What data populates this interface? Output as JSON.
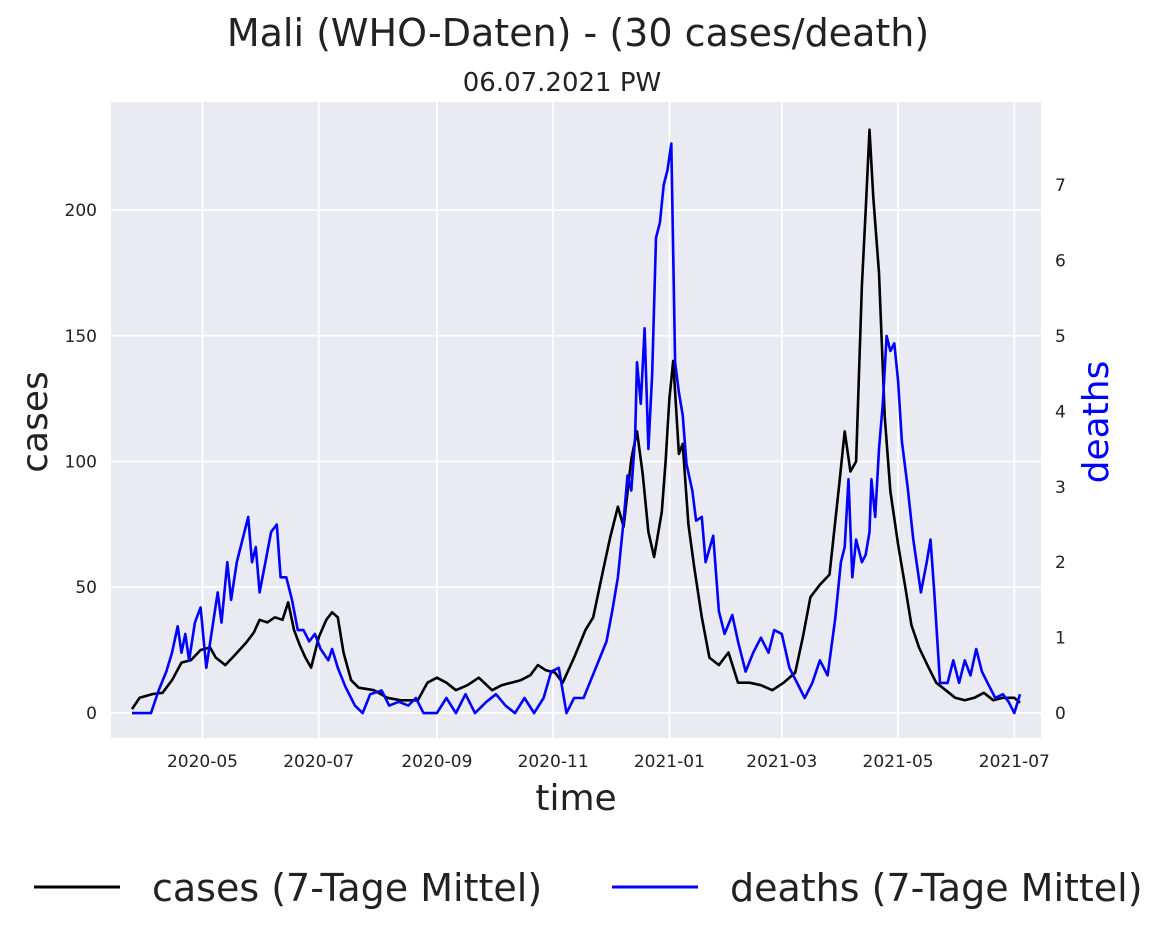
{
  "chart_data": {
    "type": "line",
    "title": "Mali (WHO-Daten) - (30 cases/death)",
    "subtitle": "06.07.2021 PW",
    "xlabel": "time",
    "ylabel_left": "cases",
    "ylabel_right": "deaths",
    "x_range": [
      "2020-03-14",
      "2021-07-15"
    ],
    "x_ticks": [
      "2020-05",
      "2020-07",
      "2020-09",
      "2020-11",
      "2021-01",
      "2021-03",
      "2021-05",
      "2021-07"
    ],
    "y_left_range": [
      -10,
      243
    ],
    "y_left_ticks": [
      0,
      50,
      100,
      150,
      200
    ],
    "y_right_range": [
      -0.33,
      8.1
    ],
    "y_right_ticks": [
      0,
      1,
      2,
      3,
      4,
      5,
      6,
      7
    ],
    "grid": true,
    "legend_position": "bottom",
    "colors": {
      "background": "#eaeaf2",
      "grid": "#ffffff",
      "cases": "#000000",
      "deaths": "#0000ff",
      "deaths_label": "#0000ff"
    },
    "series": [
      {
        "name": "cases (7-Tage Mittel)",
        "axis": "left",
        "color": "#000000",
        "points": [
          [
            "2020-03-25",
            1.5
          ],
          [
            "2020-03-29",
            6
          ],
          [
            "2020-04-05",
            7.5
          ],
          [
            "2020-04-10",
            8
          ],
          [
            "2020-04-15",
            13
          ],
          [
            "2020-04-20",
            20
          ],
          [
            "2020-04-25",
            21
          ],
          [
            "2020-04-30",
            25
          ],
          [
            "2020-05-05",
            26
          ],
          [
            "2020-05-08",
            22
          ],
          [
            "2020-05-13",
            19
          ],
          [
            "2020-05-18",
            23
          ],
          [
            "2020-05-24",
            28
          ],
          [
            "2020-05-28",
            32
          ],
          [
            "2020-05-31",
            37
          ],
          [
            "2020-06-04",
            36
          ],
          [
            "2020-06-08",
            38
          ],
          [
            "2020-06-12",
            37
          ],
          [
            "2020-06-15",
            44
          ],
          [
            "2020-06-18",
            33
          ],
          [
            "2020-06-21",
            27
          ],
          [
            "2020-06-24",
            22
          ],
          [
            "2020-06-27",
            18
          ],
          [
            "2020-07-01",
            30
          ],
          [
            "2020-07-05",
            37
          ],
          [
            "2020-07-08",
            40
          ],
          [
            "2020-07-11",
            38
          ],
          [
            "2020-07-14",
            24
          ],
          [
            "2020-07-18",
            13
          ],
          [
            "2020-07-22",
            10
          ],
          [
            "2020-07-30",
            9
          ],
          [
            "2020-08-06",
            6
          ],
          [
            "2020-08-13",
            5
          ],
          [
            "2020-08-22",
            5
          ],
          [
            "2020-08-27",
            12
          ],
          [
            "2020-09-01",
            14
          ],
          [
            "2020-09-06",
            12
          ],
          [
            "2020-09-11",
            9
          ],
          [
            "2020-09-17",
            11
          ],
          [
            "2020-09-23",
            14
          ],
          [
            "2020-09-30",
            9
          ],
          [
            "2020-10-05",
            11
          ],
          [
            "2020-10-10",
            12
          ],
          [
            "2020-10-15",
            13
          ],
          [
            "2020-10-20",
            15
          ],
          [
            "2020-10-24",
            19
          ],
          [
            "2020-10-28",
            17
          ],
          [
            "2020-11-02",
            16
          ],
          [
            "2020-11-06",
            12
          ],
          [
            "2020-11-12",
            22
          ],
          [
            "2020-11-18",
            33
          ],
          [
            "2020-11-22",
            38
          ],
          [
            "2020-11-27",
            56
          ],
          [
            "2020-12-01",
            70
          ],
          [
            "2020-12-05",
            82
          ],
          [
            "2020-12-08",
            74
          ],
          [
            "2020-12-12",
            101
          ],
          [
            "2020-12-15",
            112
          ],
          [
            "2020-12-18",
            95
          ],
          [
            "2020-12-21",
            72
          ],
          [
            "2020-12-24",
            62
          ],
          [
            "2020-12-28",
            80
          ],
          [
            "2020-12-30",
            100
          ],
          [
            "2021-01-01",
            125
          ],
          [
            "2021-01-03",
            140
          ],
          [
            "2021-01-06",
            103
          ],
          [
            "2021-01-08",
            107
          ],
          [
            "2021-01-11",
            75
          ],
          [
            "2021-01-14",
            58
          ],
          [
            "2021-01-18",
            38
          ],
          [
            "2021-01-22",
            22
          ],
          [
            "2021-01-27",
            19
          ],
          [
            "2021-02-01",
            24
          ],
          [
            "2021-02-06",
            12
          ],
          [
            "2021-02-12",
            12
          ],
          [
            "2021-02-18",
            11
          ],
          [
            "2021-02-24",
            9
          ],
          [
            "2021-03-02",
            12
          ],
          [
            "2021-03-08",
            16
          ],
          [
            "2021-03-12",
            30
          ],
          [
            "2021-03-16",
            46
          ],
          [
            "2021-03-21",
            51
          ],
          [
            "2021-03-26",
            55
          ],
          [
            "2021-03-31",
            90
          ],
          [
            "2021-04-03",
            112
          ],
          [
            "2021-04-06",
            96
          ],
          [
            "2021-04-09",
            100
          ],
          [
            "2021-04-12",
            170
          ],
          [
            "2021-04-14",
            200
          ],
          [
            "2021-04-16",
            232
          ],
          [
            "2021-04-18",
            205
          ],
          [
            "2021-04-21",
            175
          ],
          [
            "2021-04-24",
            118
          ],
          [
            "2021-04-27",
            88
          ],
          [
            "2021-05-01",
            67
          ],
          [
            "2021-05-05",
            49
          ],
          [
            "2021-05-08",
            35
          ],
          [
            "2021-05-12",
            26
          ],
          [
            "2021-05-17",
            18
          ],
          [
            "2021-05-21",
            12
          ],
          [
            "2021-05-26",
            9
          ],
          [
            "2021-05-31",
            6
          ],
          [
            "2021-06-05",
            5
          ],
          [
            "2021-06-10",
            6
          ],
          [
            "2021-06-15",
            8
          ],
          [
            "2021-06-20",
            5
          ],
          [
            "2021-06-25",
            6
          ],
          [
            "2021-07-01",
            6
          ],
          [
            "2021-07-04",
            4
          ]
        ]
      },
      {
        "name": "deaths (7-Tage Mittel)",
        "axis": "right",
        "color": "#0000ff",
        "points": [
          [
            "2020-03-25",
            0
          ],
          [
            "2020-04-04",
            0
          ],
          [
            "2020-04-08",
            0.3
          ],
          [
            "2020-04-12",
            0.55
          ],
          [
            "2020-04-15",
            0.8
          ],
          [
            "2020-04-18",
            1.15
          ],
          [
            "2020-04-20",
            0.8
          ],
          [
            "2020-04-22",
            1.05
          ],
          [
            "2020-04-24",
            0.7
          ],
          [
            "2020-04-27",
            1.2
          ],
          [
            "2020-04-30",
            1.4
          ],
          [
            "2020-05-03",
            0.6
          ],
          [
            "2020-05-06",
            1.1
          ],
          [
            "2020-05-09",
            1.6
          ],
          [
            "2020-05-11",
            1.2
          ],
          [
            "2020-05-14",
            2.0
          ],
          [
            "2020-05-16",
            1.5
          ],
          [
            "2020-05-19",
            2.0
          ],
          [
            "2020-05-22",
            2.3
          ],
          [
            "2020-05-25",
            2.6
          ],
          [
            "2020-05-27",
            2.0
          ],
          [
            "2020-05-29",
            2.2
          ],
          [
            "2020-05-31",
            1.6
          ],
          [
            "2020-06-03",
            2.0
          ],
          [
            "2020-06-06",
            2.4
          ],
          [
            "2020-06-09",
            2.5
          ],
          [
            "2020-06-11",
            1.8
          ],
          [
            "2020-06-14",
            1.8
          ],
          [
            "2020-06-17",
            1.5
          ],
          [
            "2020-06-20",
            1.1
          ],
          [
            "2020-06-23",
            1.1
          ],
          [
            "2020-06-26",
            0.95
          ],
          [
            "2020-06-29",
            1.05
          ],
          [
            "2020-07-02",
            0.85
          ],
          [
            "2020-07-06",
            0.7
          ],
          [
            "2020-07-08",
            0.85
          ],
          [
            "2020-07-11",
            0.6
          ],
          [
            "2020-07-15",
            0.35
          ],
          [
            "2020-07-20",
            0.1
          ],
          [
            "2020-07-24",
            0
          ],
          [
            "2020-07-28",
            0.25
          ],
          [
            "2020-08-03",
            0.3
          ],
          [
            "2020-08-07",
            0.1
          ],
          [
            "2020-08-12",
            0.15
          ],
          [
            "2020-08-17",
            0.1
          ],
          [
            "2020-08-21",
            0.2
          ],
          [
            "2020-08-25",
            0
          ],
          [
            "2020-09-01",
            0
          ],
          [
            "2020-09-06",
            0.2
          ],
          [
            "2020-09-11",
            0
          ],
          [
            "2020-09-16",
            0.25
          ],
          [
            "2020-09-21",
            0
          ],
          [
            "2020-09-27",
            0.15
          ],
          [
            "2020-10-02",
            0.25
          ],
          [
            "2020-10-07",
            0.1
          ],
          [
            "2020-10-12",
            0
          ],
          [
            "2020-10-17",
            0.2
          ],
          [
            "2020-10-22",
            0
          ],
          [
            "2020-10-27",
            0.2
          ],
          [
            "2020-10-31",
            0.55
          ],
          [
            "2020-11-04",
            0.6
          ],
          [
            "2020-11-08",
            0
          ],
          [
            "2020-11-12",
            0.2
          ],
          [
            "2020-11-17",
            0.2
          ],
          [
            "2020-11-21",
            0.45
          ],
          [
            "2020-11-25",
            0.7
          ],
          [
            "2020-11-29",
            0.95
          ],
          [
            "2020-12-02",
            1.35
          ],
          [
            "2020-12-05",
            1.8
          ],
          [
            "2020-12-08",
            2.55
          ],
          [
            "2020-12-10",
            3.15
          ],
          [
            "2020-12-12",
            2.95
          ],
          [
            "2020-12-14",
            3.65
          ],
          [
            "2020-12-15",
            4.65
          ],
          [
            "2020-12-17",
            4.1
          ],
          [
            "2020-12-19",
            5.1
          ],
          [
            "2020-12-21",
            3.5
          ],
          [
            "2020-12-23",
            4.5
          ],
          [
            "2020-12-25",
            6.3
          ],
          [
            "2020-12-27",
            6.5
          ],
          [
            "2020-12-29",
            7.0
          ],
          [
            "2020-12-31",
            7.2
          ],
          [
            "2021-01-02",
            7.55
          ],
          [
            "2021-01-04",
            4.65
          ],
          [
            "2021-01-06",
            4.25
          ],
          [
            "2021-01-08",
            3.95
          ],
          [
            "2021-01-10",
            3.3
          ],
          [
            "2021-01-13",
            2.95
          ],
          [
            "2021-01-15",
            2.55
          ],
          [
            "2021-01-18",
            2.6
          ],
          [
            "2021-01-20",
            2.0
          ],
          [
            "2021-01-24",
            2.35
          ],
          [
            "2021-01-27",
            1.35
          ],
          [
            "2021-01-30",
            1.05
          ],
          [
            "2021-02-03",
            1.3
          ],
          [
            "2021-02-06",
            0.95
          ],
          [
            "2021-02-10",
            0.55
          ],
          [
            "2021-02-14",
            0.8
          ],
          [
            "2021-02-18",
            1.0
          ],
          [
            "2021-02-22",
            0.8
          ],
          [
            "2021-02-25",
            1.1
          ],
          [
            "2021-03-01",
            1.05
          ],
          [
            "2021-03-05",
            0.6
          ],
          [
            "2021-03-09",
            0.4
          ],
          [
            "2021-03-13",
            0.2
          ],
          [
            "2021-03-17",
            0.4
          ],
          [
            "2021-03-21",
            0.7
          ],
          [
            "2021-03-25",
            0.5
          ],
          [
            "2021-03-29",
            1.25
          ],
          [
            "2021-04-01",
            2.0
          ],
          [
            "2021-04-03",
            2.2
          ],
          [
            "2021-04-05",
            3.1
          ],
          [
            "2021-04-07",
            1.8
          ],
          [
            "2021-04-09",
            2.3
          ],
          [
            "2021-04-12",
            2.0
          ],
          [
            "2021-04-14",
            2.1
          ],
          [
            "2021-04-16",
            2.4
          ],
          [
            "2021-04-17",
            3.1
          ],
          [
            "2021-04-19",
            2.6
          ],
          [
            "2021-04-21",
            3.5
          ],
          [
            "2021-04-23",
            4.1
          ],
          [
            "2021-04-25",
            5.0
          ],
          [
            "2021-04-27",
            4.8
          ],
          [
            "2021-04-29",
            4.9
          ],
          [
            "2021-05-01",
            4.4
          ],
          [
            "2021-05-03",
            3.6
          ],
          [
            "2021-05-06",
            3.0
          ],
          [
            "2021-05-09",
            2.3
          ],
          [
            "2021-05-13",
            1.6
          ],
          [
            "2021-05-16",
            2.0
          ],
          [
            "2021-05-18",
            2.3
          ],
          [
            "2021-05-20",
            1.6
          ],
          [
            "2021-05-23",
            0.4
          ],
          [
            "2021-05-27",
            0.4
          ],
          [
            "2021-05-30",
            0.7
          ],
          [
            "2021-06-02",
            0.4
          ],
          [
            "2021-06-05",
            0.7
          ],
          [
            "2021-06-08",
            0.5
          ],
          [
            "2021-06-11",
            0.85
          ],
          [
            "2021-06-14",
            0.55
          ],
          [
            "2021-06-17",
            0.4
          ],
          [
            "2021-06-21",
            0.2
          ],
          [
            "2021-06-25",
            0.25
          ],
          [
            "2021-06-28",
            0.15
          ],
          [
            "2021-07-01",
            0
          ],
          [
            "2021-07-04",
            0.25
          ]
        ]
      }
    ]
  }
}
